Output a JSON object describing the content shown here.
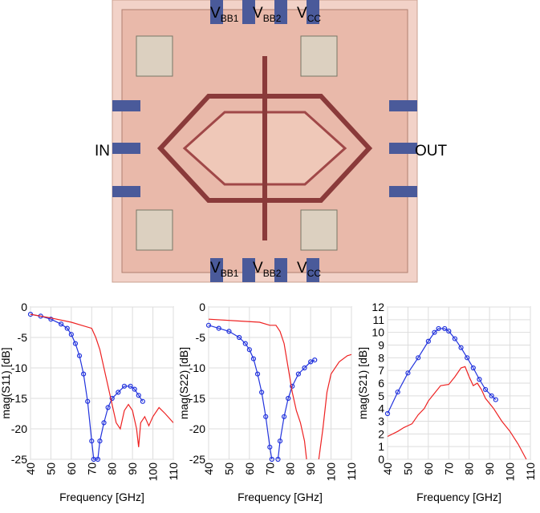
{
  "chip": {
    "top_labels": [
      [
        "V",
        "BB1"
      ],
      [
        "V",
        "BB2"
      ],
      [
        "V",
        "CC"
      ]
    ],
    "bottom_labels": [
      [
        "V",
        "BB1"
      ],
      [
        "V",
        "BB2"
      ],
      [
        "V",
        "CC"
      ]
    ],
    "input": "IN",
    "output": "OUT"
  },
  "chart_data": [
    {
      "type": "line",
      "ylabel": "mag(S11) [dB]",
      "xlabel": "Frequency [GHz]",
      "xlim": [
        40,
        110
      ],
      "xticks": [
        40,
        50,
        60,
        70,
        80,
        90,
        100,
        110
      ],
      "ylim": [
        -25,
        0
      ],
      "yticks": [
        0,
        -5,
        -10,
        -15,
        -20,
        -25
      ],
      "grid": true,
      "series": [
        {
          "color": "#2233dd",
          "markers": true,
          "x": [
            40,
            45,
            50,
            55,
            58,
            60,
            62,
            64,
            66,
            68,
            70,
            71,
            73,
            74,
            76,
            78,
            80,
            83,
            86,
            89,
            91,
            93,
            95
          ],
          "values": [
            -1.2,
            -1.5,
            -2,
            -2.8,
            -3.5,
            -4.5,
            -6,
            -8,
            -11,
            -15.5,
            -22,
            -25,
            -25,
            -22,
            -19,
            -16.5,
            -15,
            -14,
            -13,
            -13,
            -13.5,
            -14.5,
            -15.5
          ]
        },
        {
          "color": "#ee2222",
          "markers": false,
          "x": [
            40,
            50,
            60,
            65,
            70,
            72,
            74,
            76,
            78,
            80,
            82,
            84,
            86,
            88,
            90,
            92,
            93,
            94,
            96,
            98,
            100,
            103,
            106,
            110
          ],
          "values": [
            -1.2,
            -1.8,
            -2.5,
            -3,
            -3.5,
            -5,
            -7,
            -10,
            -13,
            -16,
            -19,
            -20,
            -17,
            -16,
            -17,
            -20,
            -23,
            -19,
            -18,
            -19.5,
            -18,
            -16.5,
            -17.5,
            -19
          ]
        }
      ]
    },
    {
      "type": "line",
      "ylabel": "mag(S22) [dB]",
      "xlabel": "Frequency [GHz]",
      "xlim": [
        40,
        110
      ],
      "xticks": [
        40,
        50,
        60,
        70,
        80,
        90,
        100,
        110
      ],
      "ylim": [
        -25,
        0
      ],
      "yticks": [
        0,
        -5,
        -10,
        -15,
        -20,
        -25
      ],
      "grid": true,
      "series": [
        {
          "color": "#2233dd",
          "markers": true,
          "x": [
            40,
            45,
            50,
            55,
            58,
            60,
            62,
            64,
            66,
            68,
            70,
            71,
            73,
            74,
            75,
            77,
            79,
            81,
            84,
            87,
            90,
            92
          ],
          "values": [
            -3,
            -3.5,
            -4,
            -5,
            -6,
            -7,
            -8.5,
            -11,
            -14,
            -18,
            -23,
            -25,
            null,
            -25,
            -22,
            -18,
            -15,
            -13,
            -11,
            -10,
            -9,
            -8.7
          ]
        },
        {
          "color": "#ee2222",
          "markers": false,
          "x": [
            40,
            55,
            65,
            70,
            73,
            75,
            77,
            79,
            81,
            83,
            85,
            87,
            88,
            91,
            94,
            96,
            98,
            100,
            104,
            108,
            110
          ],
          "values": [
            -2,
            -2.3,
            -2.5,
            -3,
            -3,
            -4,
            -6,
            -10,
            -14,
            -17,
            -19,
            -22,
            -25,
            null,
            -25,
            -20,
            -14,
            -11,
            -9,
            -8,
            -7.8
          ]
        }
      ]
    },
    {
      "type": "line",
      "ylabel": "mag(S21) [dB]",
      "xlabel": "Frequency [GHz]",
      "xlim": [
        40,
        110
      ],
      "xticks": [
        40,
        50,
        60,
        70,
        80,
        90,
        100,
        110
      ],
      "ylim": [
        0,
        12
      ],
      "yticks": [
        0,
        1,
        2,
        3,
        4,
        5,
        6,
        7,
        8,
        9,
        10,
        11,
        12
      ],
      "grid": true,
      "series": [
        {
          "color": "#2233dd",
          "markers": true,
          "x": [
            40,
            45,
            50,
            55,
            60,
            63,
            65,
            68,
            70,
            73,
            76,
            79,
            82,
            85,
            88,
            91,
            93
          ],
          "values": [
            3.6,
            5.3,
            6.8,
            8,
            9.3,
            10,
            10.3,
            10.3,
            10.1,
            9.5,
            8.8,
            8,
            7.2,
            6.3,
            5.5,
            5,
            4.7
          ]
        },
        {
          "color": "#ee2222",
          "markers": false,
          "x": [
            40,
            45,
            48,
            52,
            55,
            58,
            60,
            63,
            66,
            70,
            73,
            76,
            78,
            80,
            82,
            84,
            86,
            88,
            92,
            96,
            100,
            104,
            108
          ],
          "values": [
            1.8,
            2.2,
            2.5,
            2.8,
            3.5,
            4,
            4.6,
            5.2,
            5.8,
            5.9,
            6.5,
            7.2,
            7.3,
            6.5,
            5.8,
            6,
            5.5,
            4.8,
            4,
            3,
            2.2,
            1.2,
            0
          ]
        }
      ]
    }
  ]
}
